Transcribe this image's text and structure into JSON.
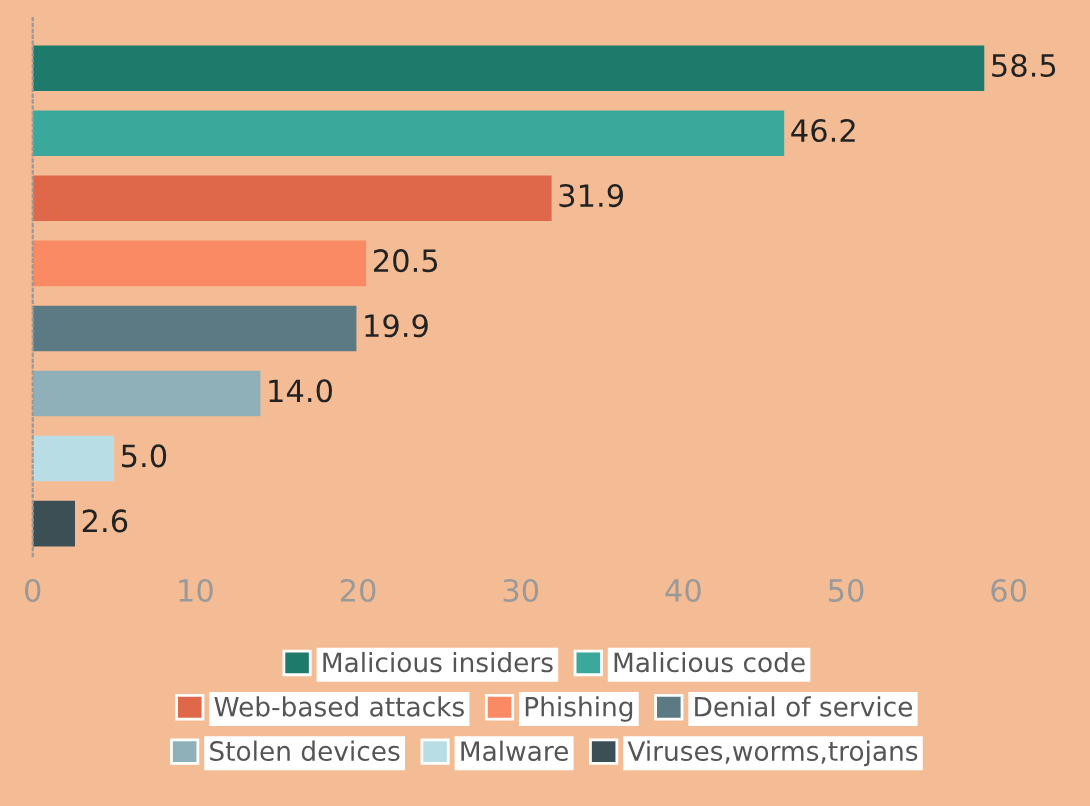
{
  "chart_data": {
    "type": "bar",
    "orientation": "horizontal",
    "categories": [
      null,
      null,
      null,
      null,
      null,
      null,
      null,
      null
    ],
    "series": [
      {
        "name": "Malicious insiders",
        "color": "#1e7b6b",
        "values": [
          58.5,
          null,
          null,
          null,
          null,
          null,
          null,
          null
        ],
        "value_labels": [
          "58.5",
          null,
          null,
          null,
          null,
          null,
          null,
          null
        ]
      },
      {
        "name": "Malicious code",
        "color": "#3aa89a",
        "values": [
          null,
          46.2,
          null,
          null,
          null,
          null,
          null,
          null
        ],
        "value_labels": [
          null,
          "46.2",
          null,
          null,
          null,
          null,
          null,
          null
        ]
      },
      {
        "name": "Web-based attacks",
        "color": "#e0684a",
        "values": [
          null,
          null,
          31.9,
          null,
          null,
          null,
          null,
          null
        ],
        "value_labels": [
          null,
          null,
          "31.9",
          null,
          null,
          null,
          null,
          null
        ]
      },
      {
        "name": "Phishing",
        "color": "#f98a64",
        "values": [
          null,
          null,
          null,
          20.5,
          null,
          null,
          null,
          null
        ],
        "value_labels": [
          null,
          null,
          null,
          "20.5",
          null,
          null,
          null,
          null
        ]
      },
      {
        "name": "Denial of service",
        "color": "#5b7a84",
        "values": [
          null,
          null,
          null,
          null,
          19.9,
          null,
          null,
          null
        ],
        "value_labels": [
          null,
          null,
          null,
          null,
          "19.9",
          null,
          null,
          null
        ]
      },
      {
        "name": "Stolen devices",
        "color": "#8fb0b8",
        "values": [
          null,
          null,
          null,
          null,
          null,
          14.0,
          null,
          null
        ],
        "value_labels": [
          null,
          null,
          null,
          null,
          null,
          "14.0",
          null,
          null
        ]
      },
      {
        "name": "Malware",
        "color": "#b8dde4",
        "values": [
          null,
          null,
          null,
          null,
          null,
          null,
          5.0,
          null
        ],
        "value_labels": [
          null,
          null,
          null,
          null,
          null,
          null,
          "5.0",
          null
        ]
      },
      {
        "name": "Viruses,worms,trojans",
        "color": "#3c4f55",
        "values": [
          null,
          null,
          null,
          null,
          null,
          null,
          null,
          2.6
        ],
        "value_labels": [
          null,
          null,
          null,
          null,
          null,
          null,
          null,
          "2.6"
        ]
      }
    ],
    "xlim": [
      0,
      65
    ],
    "xticks": [
      0,
      10,
      20,
      30,
      40,
      50,
      60
    ],
    "grid": false,
    "legend": "bottom"
  }
}
